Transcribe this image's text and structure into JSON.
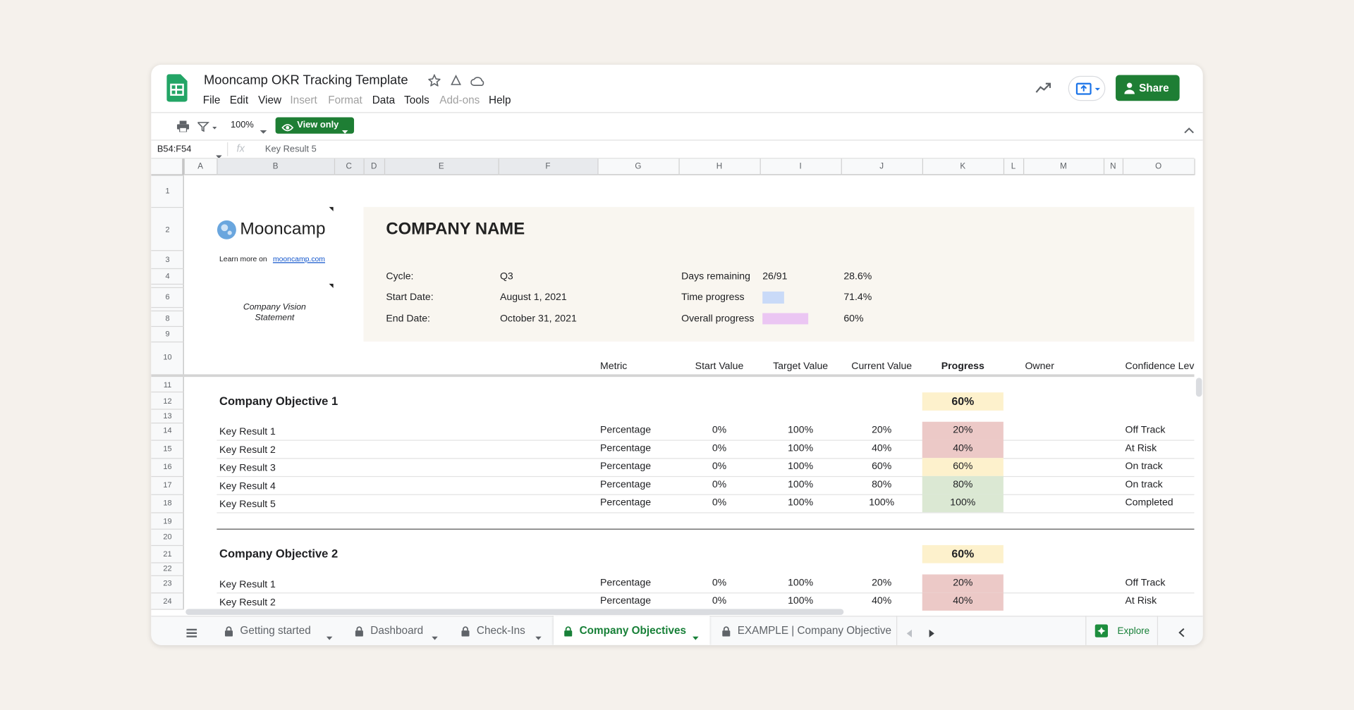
{
  "header": {
    "title": "Mooncamp OKR Tracking Template",
    "menu": [
      "File",
      "Edit",
      "View",
      "Insert",
      "Format",
      "Data",
      "Tools",
      "Add-ons",
      "Help"
    ],
    "share": "Share"
  },
  "toolbar": {
    "zoom": "100%",
    "view_only": "View only"
  },
  "formula_bar": {
    "cell_ref": "B54:F54",
    "fx": "fx",
    "content": "Key Result 5"
  },
  "columns": [
    "A",
    "B",
    "C",
    "D",
    "E",
    "F",
    "G",
    "H",
    "I",
    "J",
    "K",
    "L",
    "M",
    "N",
    "O"
  ],
  "rows": [
    1,
    2,
    3,
    4,
    6,
    8,
    9,
    10,
    11,
    12,
    13,
    14,
    15,
    16,
    17,
    18,
    19,
    20,
    21,
    22,
    23,
    24
  ],
  "sheet": {
    "brand": "Mooncamp",
    "learn_more": "Learn more on",
    "link": "mooncamp.com",
    "vision": "Company Vision Statement",
    "company_name": "COMPANY NAME",
    "info": [
      {
        "label": "Cycle:",
        "value": "Q3"
      },
      {
        "label": "Start Date:",
        "value": "August 1, 2021"
      },
      {
        "label": "End Date:",
        "value": "October 31, 2021"
      }
    ],
    "stats": [
      {
        "label": "Days remaining",
        "value": "26/91",
        "percent": "28.6%"
      },
      {
        "label": "Time progress",
        "percent": "71.4%",
        "color": "#c9daf8"
      },
      {
        "label": "Overall progress",
        "percent": "60%",
        "color": "#ebc6f3"
      }
    ],
    "table_headers": [
      "Metric",
      "Start Value",
      "Target Value",
      "Current Value",
      "Progress",
      "Owner",
      "Confidence Lev"
    ],
    "objectives": [
      {
        "title": "Company Objective 1",
        "progress": "60%",
        "color": "#fdf1cc",
        "key_results": [
          {
            "cells": [
              "Key Result 1",
              "Percentage",
              "0%",
              "100%",
              "20%",
              "20%",
              "Off Track"
            ],
            "color": "#ecc9c7"
          },
          {
            "cells": [
              "Key Result 2",
              "Percentage",
              "0%",
              "100%",
              "40%",
              "40%",
              "At Risk"
            ],
            "color": "#ecc9c7"
          },
          {
            "cells": [
              "Key Result 3",
              "Percentage",
              "0%",
              "100%",
              "60%",
              "60%",
              "On track"
            ],
            "color": "#fdf1cc"
          },
          {
            "cells": [
              "Key Result 4",
              "Percentage",
              "0%",
              "100%",
              "80%",
              "80%",
              "On track"
            ],
            "color": "#dbe8d3"
          },
          {
            "cells": [
              "Key Result 5",
              "Percentage",
              "0%",
              "100%",
              "100%",
              "100%",
              "Completed"
            ],
            "color": "#dbe8d3"
          }
        ]
      },
      {
        "title": "Company Objective 2",
        "progress": "60%",
        "color": "#fdf1cc",
        "key_results": [
          {
            "cells": [
              "Key Result 1",
              "Percentage",
              "0%",
              "100%",
              "20%",
              "20%",
              "Off Track"
            ],
            "color": "#ecc9c7"
          },
          {
            "cells": [
              "Key Result 2",
              "Percentage",
              "0%",
              "100%",
              "40%",
              "40%",
              "At Risk"
            ],
            "color": "#ecc9c7"
          }
        ]
      }
    ]
  },
  "tabs": [
    "Getting started",
    "Dashboard",
    "Check-Ins",
    "Company Objectives",
    "EXAMPLE | Company Objective"
  ],
  "active_tab": 3,
  "explore": "Explore"
}
